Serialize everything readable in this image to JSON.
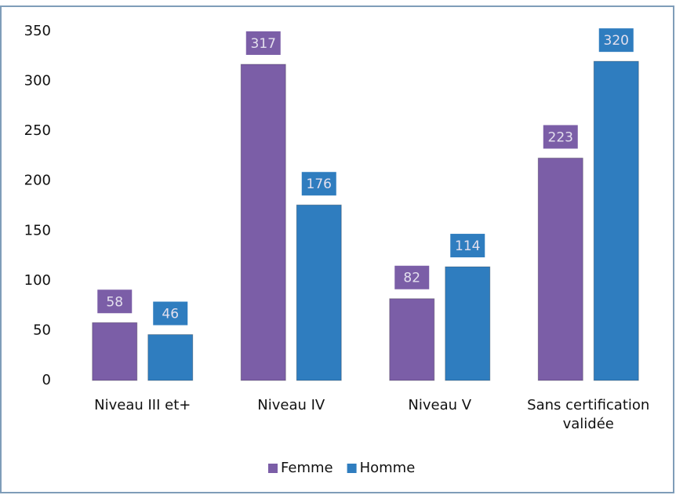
{
  "chart_data": {
    "type": "bar",
    "categories": [
      "Niveau III et+",
      "Niveau IV",
      "Niveau V",
      "Sans certification validée"
    ],
    "series": [
      {
        "name": "Femme",
        "color": "#7b5ea7",
        "values": [
          58,
          317,
          82,
          223
        ]
      },
      {
        "name": "Homme",
        "color": "#2f7dbf",
        "values": [
          46,
          176,
          114,
          320
        ]
      }
    ],
    "ylim": [
      0,
      350
    ],
    "yticks": [
      0,
      50,
      100,
      150,
      200,
      250,
      300,
      350
    ],
    "grid": false,
    "legend": "bottom"
  }
}
